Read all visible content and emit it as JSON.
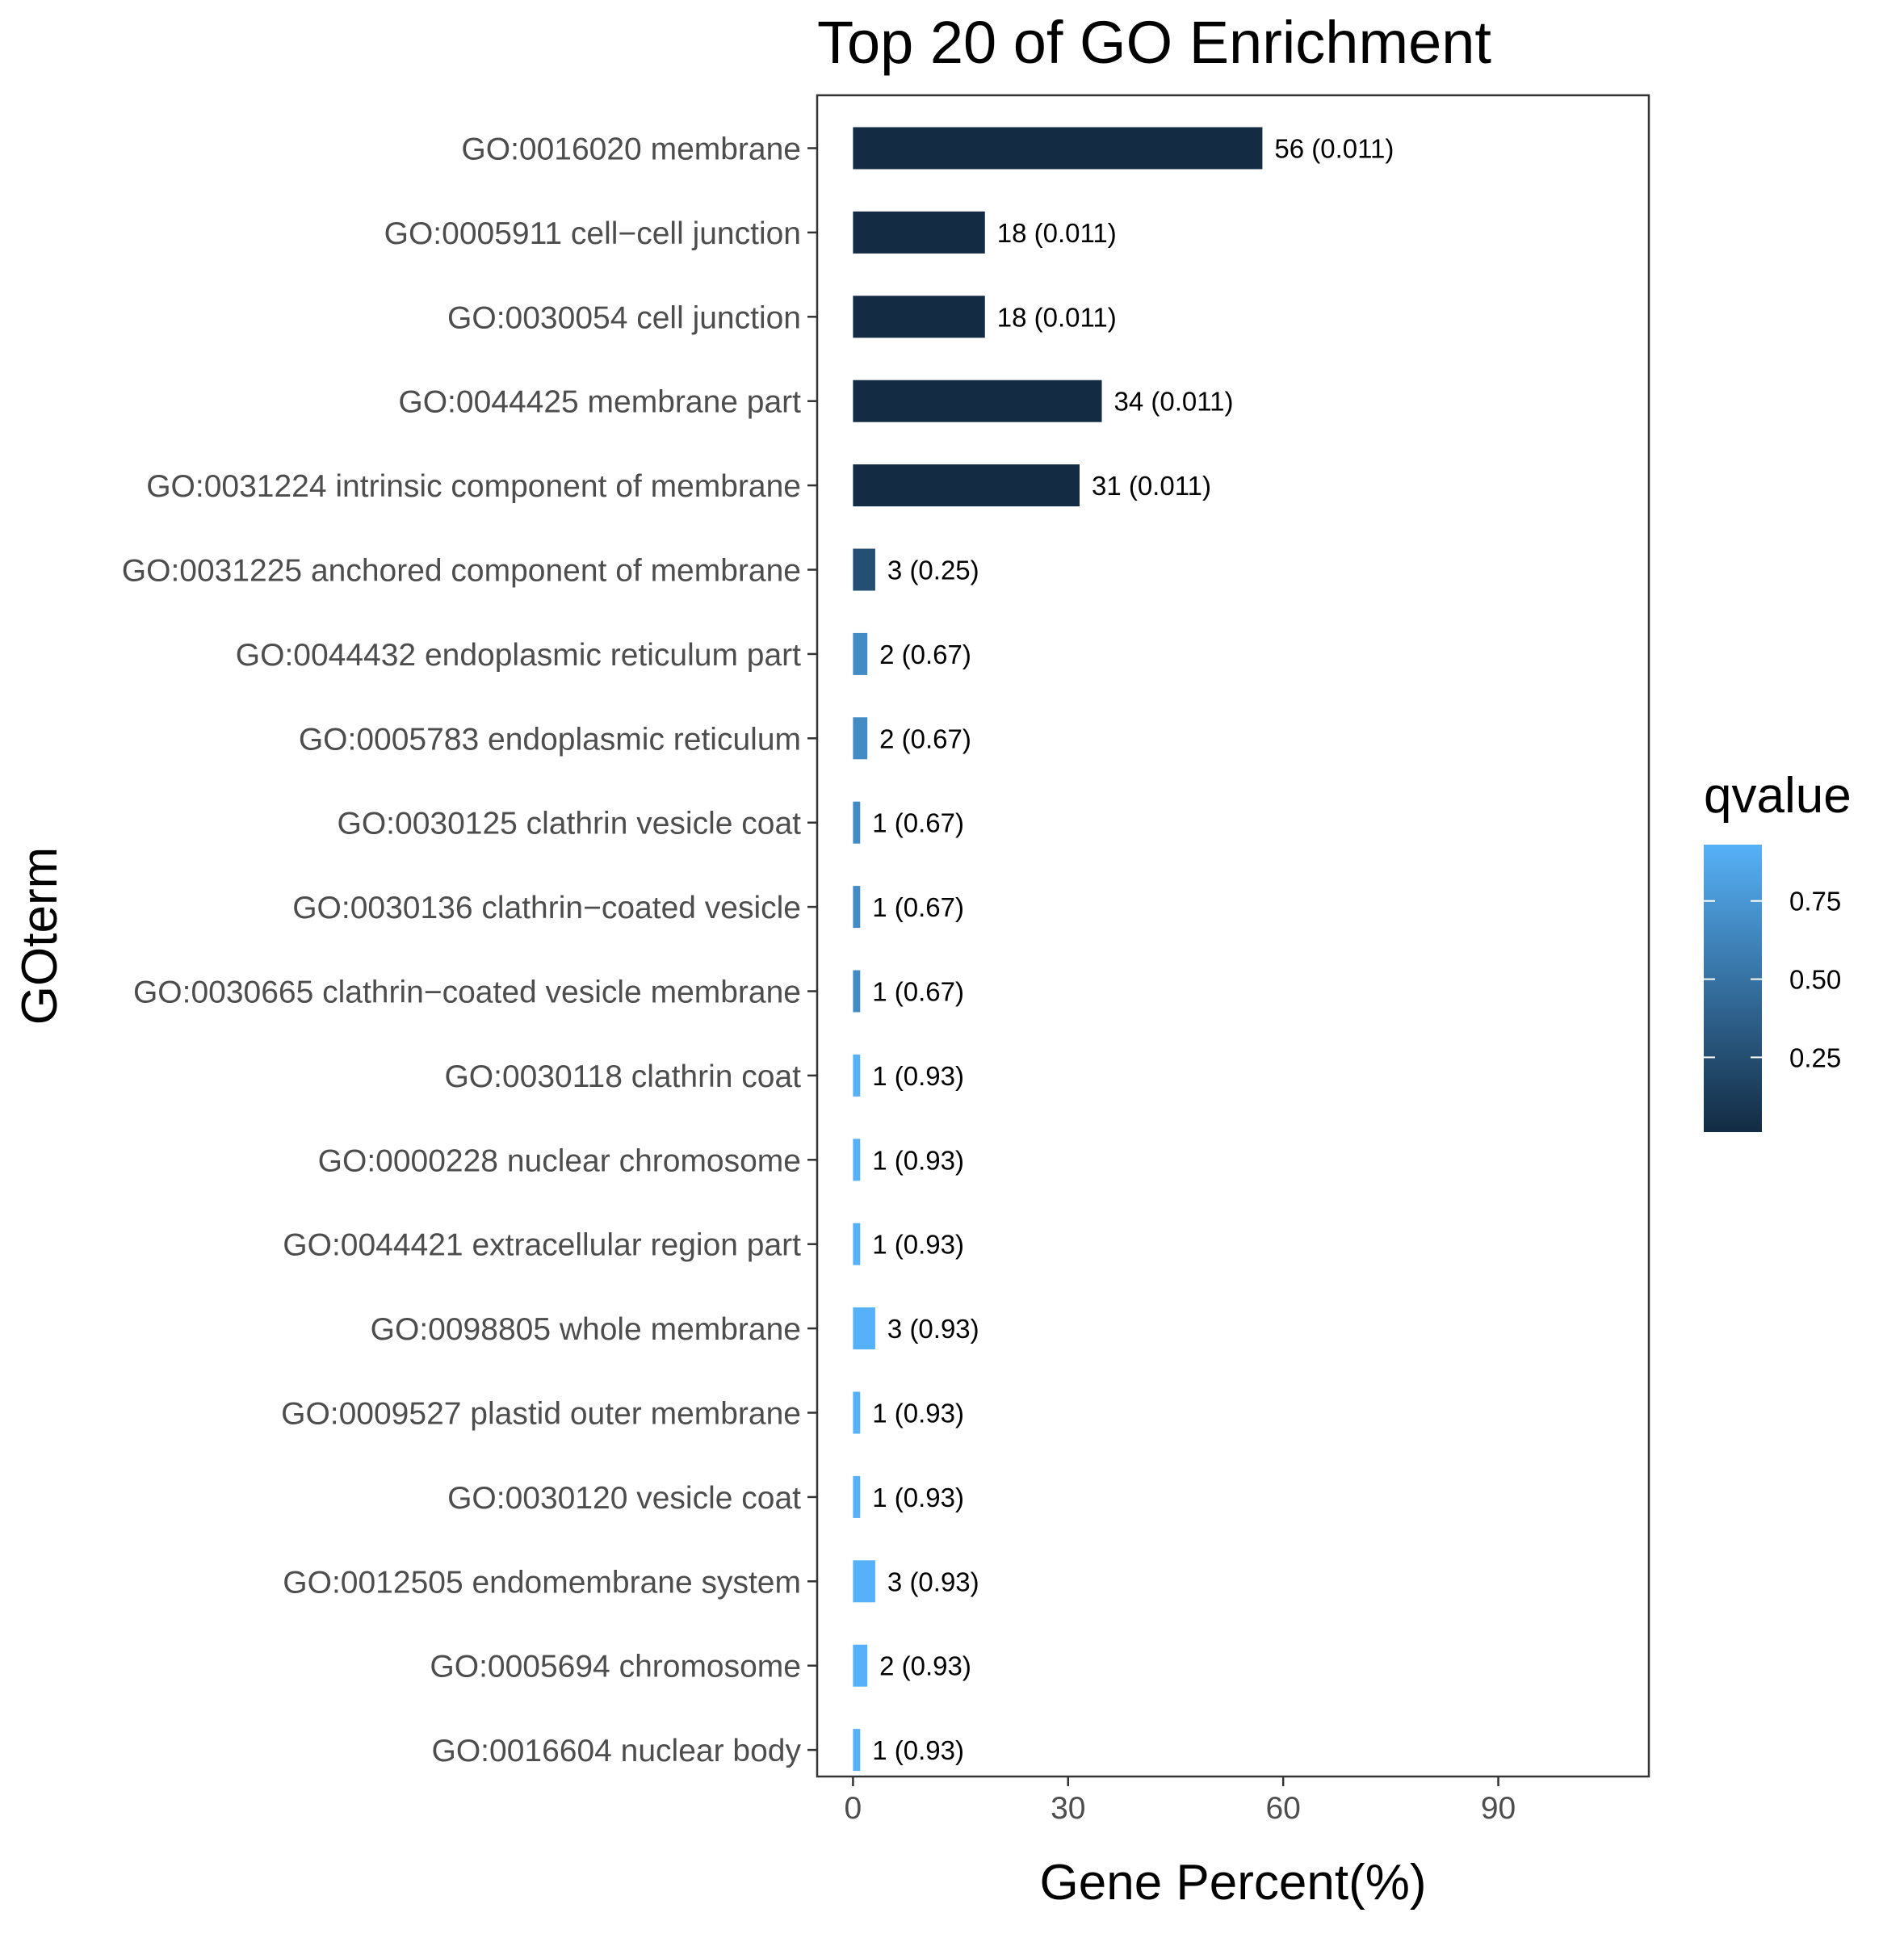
{
  "chart_data": {
    "type": "bar",
    "orientation": "horizontal",
    "title": "Top 20 of GO Enrichment",
    "xlabel": "Gene Percent(%)",
    "ylabel": "GOterm",
    "xlim": [
      -5,
      111
    ],
    "xticks": [
      0,
      30,
      60,
      90
    ],
    "grid": false,
    "legend": {
      "title": "qvalue",
      "position": "right",
      "type": "colorbar",
      "range": [
        0.011,
        0.93
      ],
      "ticks": [
        0.25,
        0.5,
        0.75
      ],
      "tick_labels": [
        "0.25",
        "0.50",
        "0.75"
      ],
      "color_low": "#132b43",
      "color_high": "#56b1f7"
    },
    "categories": [
      "GO:0016020 membrane",
      "GO:0005911 cell−cell junction",
      "GO:0030054 cell junction",
      "GO:0044425 membrane part",
      "GO:0031224 intrinsic component of membrane",
      "GO:0031225 anchored component of membrane",
      "GO:0044432 endoplasmic reticulum part",
      "GO:0005783 endoplasmic reticulum",
      "GO:0030125 clathrin vesicle coat",
      "GO:0030136 clathrin−coated vesicle",
      "GO:0030665 clathrin−coated vesicle membrane",
      "GO:0030118 clathrin coat",
      "GO:0000228 nuclear chromosome",
      "GO:0044421 extracellular region part",
      "GO:0098805 whole membrane",
      "GO:0009527 plastid outer membrane",
      "GO:0030120 vesicle coat",
      "GO:0012505 endomembrane system",
      "GO:0005694 chromosome",
      "GO:0016604 nuclear body"
    ],
    "values": [
      57.1,
      18.4,
      18.4,
      34.7,
      31.6,
      3.1,
      2.0,
      2.0,
      1.0,
      1.0,
      1.0,
      1.0,
      1.0,
      1.0,
      3.1,
      1.0,
      1.0,
      3.1,
      2.0,
      1.0
    ],
    "gene_counts": [
      56,
      18,
      18,
      34,
      31,
      3,
      2,
      2,
      1,
      1,
      1,
      1,
      1,
      1,
      3,
      1,
      1,
      3,
      2,
      1
    ],
    "qvalues": [
      0.011,
      0.011,
      0.011,
      0.011,
      0.011,
      0.25,
      0.67,
      0.67,
      0.67,
      0.67,
      0.67,
      0.93,
      0.93,
      0.93,
      0.93,
      0.93,
      0.93,
      0.93,
      0.93,
      0.93
    ],
    "bar_labels": [
      "56 (0.011)",
      "18 (0.011)",
      "18 (0.011)",
      "34 (0.011)",
      "31 (0.011)",
      "3 (0.25)",
      "2 (0.67)",
      "2 (0.67)",
      "1 (0.67)",
      "1 (0.67)",
      "1 (0.67)",
      "1 (0.93)",
      "1 (0.93)",
      "1 (0.93)",
      "3 (0.93)",
      "1 (0.93)",
      "1 (0.93)",
      "3 (0.93)",
      "2 (0.93)",
      "1 (0.93)"
    ]
  }
}
